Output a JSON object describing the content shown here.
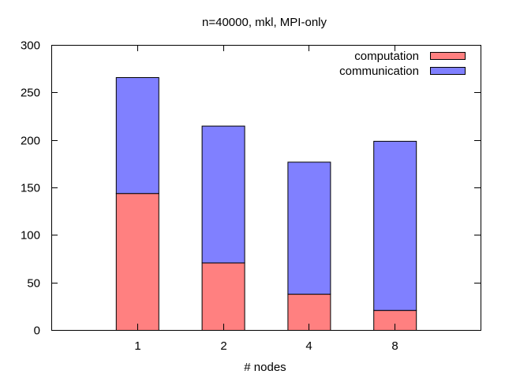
{
  "chart_data": {
    "type": "bar",
    "stacked": true,
    "title": "n=40000, mkl, MPI-only",
    "xlabel": "# nodes",
    "ylabel": "",
    "categories": [
      "1",
      "2",
      "4",
      "8"
    ],
    "ylim": [
      0,
      300
    ],
    "yticks": [
      "0",
      "50",
      "100",
      "150",
      "200",
      "250",
      "300"
    ],
    "series": [
      {
        "name": "computation",
        "values": [
          144,
          71,
          38,
          21
        ],
        "color": "#ff8080"
      },
      {
        "name": "communication",
        "values": [
          122,
          144,
          139,
          178
        ],
        "color": "#8080ff"
      }
    ],
    "grid": false,
    "legend_position": "top-right"
  }
}
